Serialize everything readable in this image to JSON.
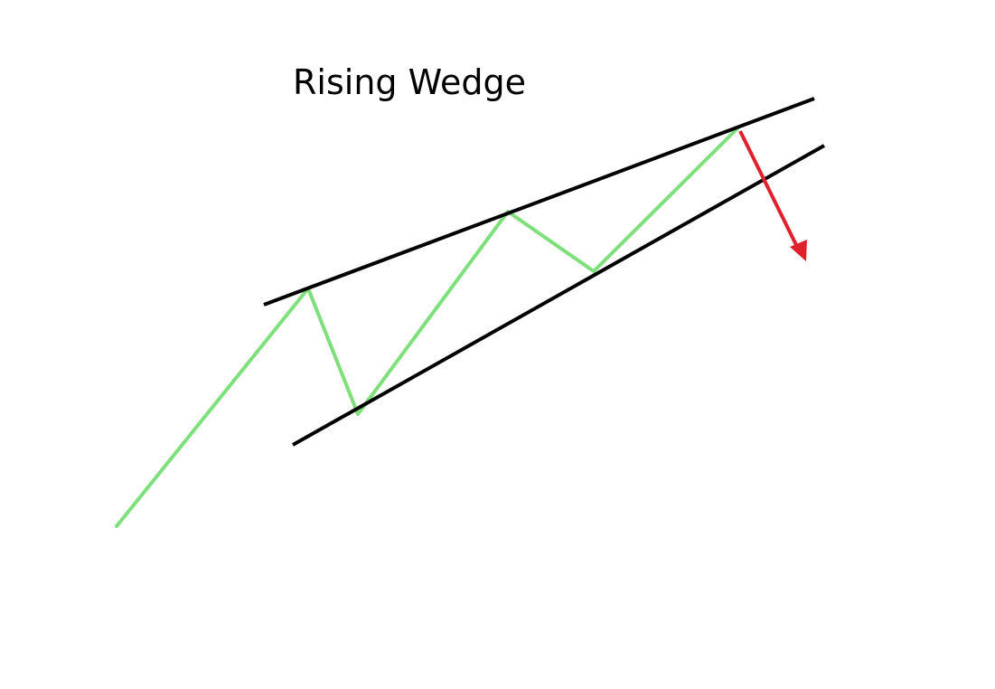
{
  "diagram": {
    "title": "Rising Wedge",
    "colors": {
      "background": "#ffffff",
      "trendlines": "#000000",
      "price_path": "#7ee07a",
      "breakout_arrow": "#e0202a",
      "title": "#000000"
    },
    "shapes": {
      "upper_trendline": "line",
      "lower_trendline": "line",
      "price_path": "zigzag-polyline",
      "breakout_arrow": "arrow-down"
    }
  }
}
